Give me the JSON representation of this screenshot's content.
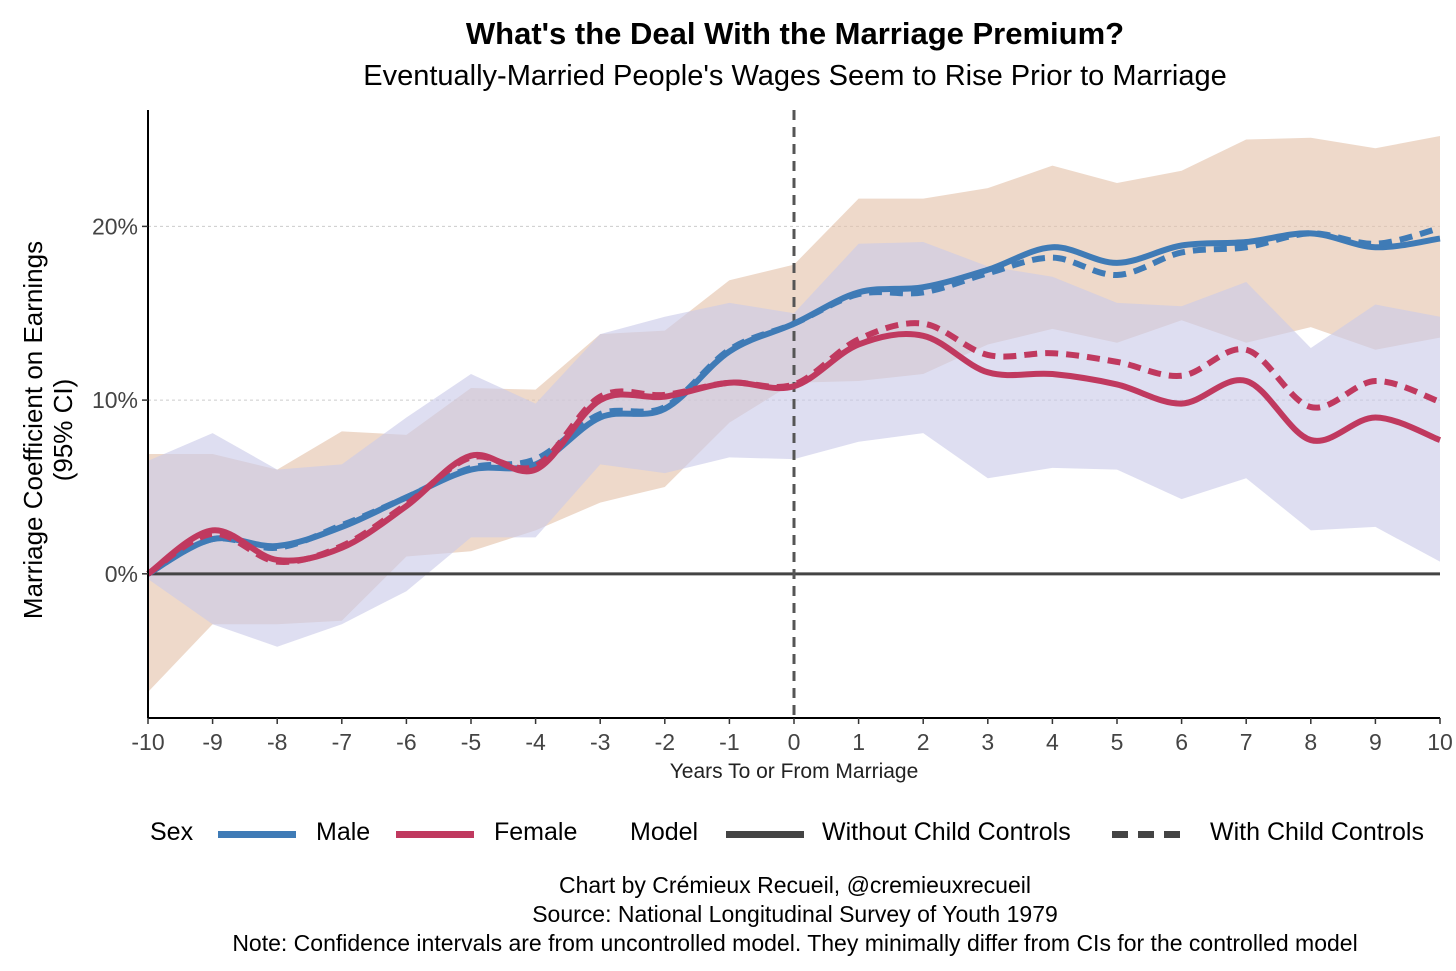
{
  "chart_data": {
    "type": "line",
    "title": "What's the Deal With the Marriage Premium?",
    "subtitle": "Eventually-Married People's Wages Seem to Rise Prior to Marriage",
    "xlabel": "Years To or From Marriage",
    "ylabel_lines": [
      "Marriage Coefficient on Earnings",
      "(95% CI)"
    ],
    "xlim": [
      -10,
      10
    ],
    "ylim": [
      -8.3,
      26.7
    ],
    "x": [
      -10,
      -9,
      -8,
      -7,
      -6,
      -5,
      -4,
      -3,
      -2,
      -1,
      0,
      1,
      2,
      3,
      4,
      5,
      6,
      7,
      8,
      9,
      10
    ],
    "x_ticks": [
      "-10",
      "-9",
      "-8",
      "-7",
      "-6",
      "-5",
      "-4",
      "-3",
      "-2",
      "-1",
      "0",
      "1",
      "2",
      "3",
      "4",
      "5",
      "6",
      "7",
      "8",
      "9",
      "10"
    ],
    "y_ticks": [
      {
        "value": 0,
        "label": "0%"
      },
      {
        "value": 10,
        "label": "10%"
      },
      {
        "value": 20,
        "label": "20%"
      }
    ],
    "grid": "horizontal dotted",
    "vline_x": 0,
    "colors": {
      "male": "#3f7bb6",
      "female": "#c0395f",
      "male_ci": "#e3c1aa",
      "female_ci": "#c9c9e8",
      "zero": "#444444"
    },
    "bands": [
      {
        "name": "Male 95% CI",
        "color": "#e3c1aa",
        "upper": [
          6.9,
          6.9,
          6.0,
          8.2,
          8.0,
          10.7,
          10.6,
          13.8,
          14.0,
          16.9,
          17.8,
          21.6,
          21.6,
          22.2,
          23.5,
          22.5,
          23.2,
          25.0,
          25.1,
          24.5,
          25.2
        ],
        "lower": [
          -6.8,
          -2.9,
          -2.9,
          -2.7,
          1.0,
          1.3,
          2.5,
          4.1,
          5.0,
          8.7,
          11.0,
          11.1,
          11.5,
          13.2,
          14.1,
          13.3,
          14.6,
          13.3,
          14.2,
          12.9,
          13.6
        ]
      },
      {
        "name": "Female 95% CI",
        "color": "#c9c9e8",
        "upper": [
          6.5,
          8.1,
          6.0,
          6.3,
          9.0,
          11.5,
          9.8,
          13.8,
          14.8,
          15.6,
          15.0,
          19.0,
          19.1,
          17.7,
          17.1,
          15.6,
          15.4,
          16.8,
          13.0,
          15.5,
          14.8
        ],
        "lower": [
          -0.3,
          -2.9,
          -4.2,
          -2.9,
          -1.0,
          2.1,
          2.1,
          6.3,
          5.8,
          6.7,
          6.6,
          7.6,
          8.1,
          5.5,
          6.1,
          6.0,
          4.3,
          5.5,
          2.5,
          2.7,
          0.7
        ]
      }
    ],
    "series": [
      {
        "name": "Male - Without Child Controls",
        "sex": "Male",
        "model": "Without Child Controls",
        "values": [
          0,
          2.0,
          1.6,
          2.7,
          4.4,
          6.0,
          6.3,
          9.0,
          9.5,
          12.8,
          14.4,
          16.2,
          16.5,
          17.5,
          18.8,
          17.9,
          18.9,
          19.1,
          19.6,
          18.8,
          19.3
        ]
      },
      {
        "name": "Male - With Child Controls",
        "sex": "Male",
        "model": "With Child Controls",
        "values": [
          0,
          2.0,
          1.5,
          2.8,
          4.4,
          6.1,
          6.6,
          9.2,
          9.6,
          12.9,
          14.4,
          16.1,
          16.2,
          17.3,
          18.2,
          17.2,
          18.5,
          18.8,
          19.6,
          19.0,
          19.9
        ]
      },
      {
        "name": "Female - Without Child Controls",
        "sex": "Female",
        "model": "Without Child Controls",
        "values": [
          0,
          2.5,
          0.8,
          1.5,
          3.9,
          6.8,
          6.0,
          10.0,
          10.2,
          11.0,
          10.8,
          13.2,
          13.7,
          11.6,
          11.5,
          10.9,
          9.8,
          11.1,
          7.7,
          9.0,
          7.7
        ]
      },
      {
        "name": "Female - With Child Controls",
        "sex": "Female",
        "model": "With Child Controls",
        "values": [
          0,
          2.3,
          0.7,
          1.6,
          4.0,
          6.7,
          6.2,
          10.2,
          10.3,
          11.0,
          10.9,
          13.5,
          14.4,
          12.6,
          12.7,
          12.2,
          11.4,
          12.9,
          9.6,
          11.1,
          9.9
        ]
      }
    ],
    "legend": {
      "placement": "bottom",
      "sex_title": "Sex",
      "male": "Male",
      "female": "Female",
      "model_title": "Model",
      "without": "Without Child Controls",
      "with": "With Child Controls"
    },
    "caption": {
      "line1": "Chart by Crémieux Recueil, @cremieuxrecueil",
      "line2": "Source: National Longitudinal Survey of Youth 1979",
      "line3": "Note: Confidence intervals are from uncontrolled model. They minimally differ from CIs for the controlled model"
    }
  }
}
